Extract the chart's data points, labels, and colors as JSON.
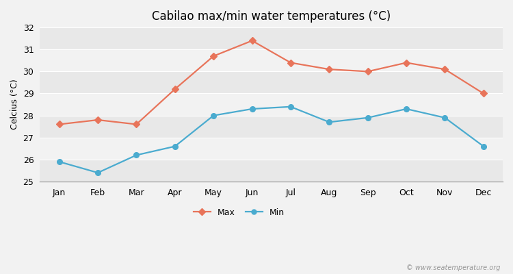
{
  "title": "Cabilao max/min water temperatures (°C)",
  "ylabel": "Celcius (°C)",
  "months": [
    "Jan",
    "Feb",
    "Mar",
    "Apr",
    "May",
    "Jun",
    "Jul",
    "Aug",
    "Sep",
    "Oct",
    "Nov",
    "Dec"
  ],
  "max_values": [
    27.6,
    27.8,
    27.6,
    29.2,
    30.7,
    31.4,
    30.4,
    30.1,
    30.0,
    30.4,
    30.1,
    29.0
  ],
  "min_values": [
    25.9,
    25.4,
    26.2,
    26.6,
    28.0,
    28.3,
    28.4,
    27.7,
    27.9,
    28.3,
    27.9,
    26.6
  ],
  "max_color": "#e8745a",
  "min_color": "#4aabcf",
  "bg_color": "#f2f2f2",
  "band_colors": [
    "#e8e8e8",
    "#f2f2f2"
  ],
  "grid_color": "#ffffff",
  "ylim": [
    25,
    32
  ],
  "yticks": [
    25,
    26,
    27,
    28,
    29,
    30,
    31,
    32
  ],
  "watermark": "© www.seatemperature.org",
  "legend_max": "Max",
  "legend_min": "Min",
  "title_fontsize": 12,
  "axis_fontsize": 9,
  "tick_fontsize": 9
}
